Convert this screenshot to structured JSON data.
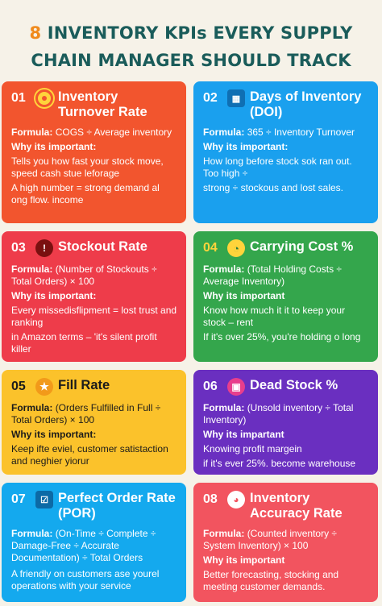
{
  "header": {
    "line1_highlight": "8",
    "line1_rest": "INVENTORY KPIs EVERY SUPPLY",
    "line2": "CHAIN MANAGER SHOULD TRACK"
  },
  "cards": [
    {
      "num": "01",
      "icon": "target-icon",
      "title": "Inventory Turnover Rate",
      "formula_label": "Formula:",
      "formula": "COGS ÷ Average inventory",
      "why_label": "Why its important:",
      "why": "Tells you how fast your stock move, speed cash stue leforage",
      "extra": "A high number = strong demand al ong flow. income"
    },
    {
      "num": "02",
      "icon": "calendar-icon",
      "title": "Days of Inventory (DOI)",
      "formula_label": "Formula:",
      "formula": "365 ÷ Inventory Turnover",
      "why_label": "Why its important:",
      "why": "How long before stock sok ran out. Too high ÷",
      "extra": "strong ÷ stockous and lost sales."
    },
    {
      "num": "03",
      "icon": "stop-icon",
      "title": "Stockout Rate",
      "formula_label": "Formula:",
      "formula": "(Number of Stockouts ÷ Total Orders) × 100",
      "why_label": "Why its important:",
      "why": "Every missedisflipment = lost trust and ranking",
      "extra": "in Amazon terms – 'it's silent profit killer"
    },
    {
      "num": "04",
      "icon": "clock-icon",
      "title": "Carrying Cost %",
      "formula_label": "Formula:",
      "formula": "(Total Holding Costs ÷ Average Inventory)",
      "why_label": "Why its important",
      "why": "Know how much it it to keep your stock – rent",
      "extra": "If it's over 25%, you're holding o long"
    },
    {
      "num": "05",
      "icon": "star-icon",
      "title": "Fill Rate",
      "formula_label": "Formula:",
      "formula": "(Orders Fulfilled in Full ÷ Total Orders) × 100",
      "why_label": "Why its important:",
      "why": "Keep ifte eviel, customer satistaction and neghier yiorur",
      "extra": ""
    },
    {
      "num": "06",
      "icon": "box-icon",
      "title": "Dead Stock %",
      "formula_label": "Formula:",
      "formula": "(Unsold inventory ÷ Total Inventory)",
      "why_label": "Why its impartant",
      "why": "Knowing profit margein",
      "extra": "if it's ever 25%. become warehouse"
    },
    {
      "num": "07",
      "icon": "checklist-icon",
      "title": "Perfect Order Rate (POR)",
      "formula_label": "Formula:",
      "formula": "(On-Time ÷ Complete ÷ Damage-Free ÷ Accurate Documentation) ÷ Total Orders",
      "why_label": "",
      "why": "A friendly on customers ase yourel operations with your service",
      "extra": ""
    },
    {
      "num": "08",
      "icon": "gauge-icon",
      "title": "Inventory Accuracy Rate",
      "formula_label": "Formula:",
      "formula": "(Counted inventory ÷ System Inventory) × 100",
      "why_label": "Why its important",
      "why": "Better forecasting, stocking and meeting customer demands.",
      "extra": ""
    }
  ]
}
